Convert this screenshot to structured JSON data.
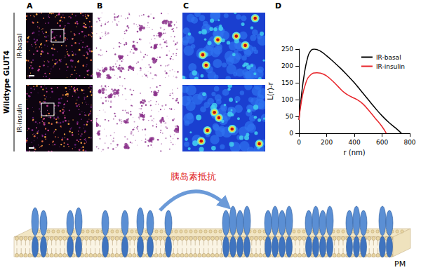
{
  "figure": {
    "row_label": "Wildtype GLUT4",
    "conditions": [
      "IR-basal",
      "IR-insulin"
    ],
    "panel_letters": [
      "A",
      "B",
      "C",
      "D"
    ]
  },
  "chart_data": {
    "type": "line",
    "x_label": "r (nm)",
    "y_label": "L(r)-r",
    "xlim": [
      0,
      800
    ],
    "xticks": [
      0,
      200,
      400,
      600,
      800
    ],
    "ylim": [
      0,
      250
    ],
    "yticks": [
      0,
      50,
      100,
      150,
      200,
      250
    ],
    "grid": false,
    "legend": "upper right",
    "series": [
      {
        "name": "IR-basal",
        "color": "#000000",
        "line_style": "solid",
        "marker": "none",
        "x": [
          0,
          20,
          40,
          60,
          80,
          110,
          150,
          200,
          250,
          300,
          350,
          400,
          450,
          500,
          550,
          600,
          650,
          700,
          740
        ],
        "values": [
          40,
          120,
          180,
          220,
          242,
          250,
          245,
          230,
          212,
          193,
          172,
          150,
          125,
          100,
          75,
          52,
          32,
          15,
          0
        ]
      },
      {
        "name": "IR-insulin",
        "color": "#e8252b",
        "line_style": "solid",
        "marker": "none",
        "x": [
          0,
          20,
          50,
          80,
          130,
          180,
          230,
          280,
          330,
          380,
          420,
          460,
          500,
          550,
          600,
          630
        ],
        "values": [
          40,
          100,
          150,
          172,
          180,
          175,
          160,
          140,
          120,
          108,
          100,
          88,
          70,
          45,
          20,
          0
        ]
      }
    ]
  },
  "diagram": {
    "arrow_label": "胰岛素抵抗",
    "membrane_label": "PM"
  }
}
